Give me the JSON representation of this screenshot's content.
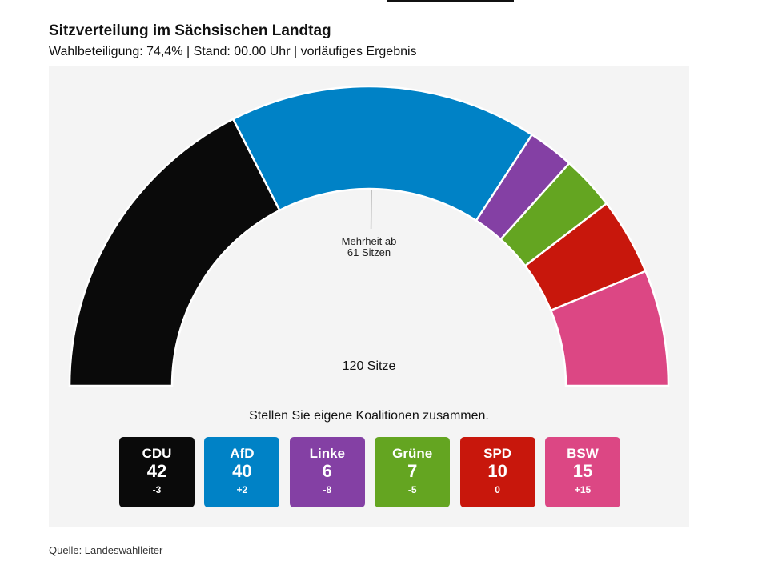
{
  "header": {
    "title": "Sitzverteilung im Sächsischen Landtag",
    "subtitle": "Wahlbeteiligung: 74,4% | Stand: 00.00 Uhr | vorläufiges Ergebnis"
  },
  "chart_data": {
    "type": "parliament-arc",
    "total_seats": 120,
    "total_label": "120 Sitze",
    "majority": 61,
    "majority_label_line1": "Mehrheit ab",
    "majority_label_line2": "61 Sitzen",
    "parties": [
      {
        "name": "CDU",
        "seats": 42,
        "diff": "-3",
        "color": "#0a0a0a"
      },
      {
        "name": "AfD",
        "seats": 40,
        "diff": "+2",
        "color": "#0082c6"
      },
      {
        "name": "Linke",
        "seats": 6,
        "diff": "-8",
        "color": "#8440a4"
      },
      {
        "name": "Grüne",
        "seats": 7,
        "diff": "-5",
        "color": "#64a521"
      },
      {
        "name": "SPD",
        "seats": 10,
        "diff": "0",
        "color": "#c8170c"
      },
      {
        "name": "BSW",
        "seats": 15,
        "diff": "+15",
        "color": "#dc4784"
      }
    ]
  },
  "coalition": {
    "prompt": "Stellen Sie eigene Koalitionen zusammen."
  },
  "footer": {
    "source": "Quelle: Landeswahlleiter"
  }
}
